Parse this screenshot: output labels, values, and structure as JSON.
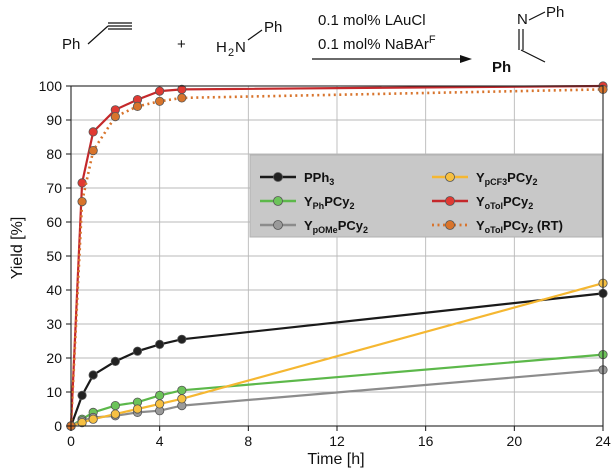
{
  "scheme": {
    "reactant1": "Ph",
    "plus": "+",
    "reactant2_h": "H",
    "reactant2_sub": "2",
    "reactant2_n": "N",
    "reactant2_ph": "Ph",
    "condition1": "0.1 mol% LAuCl",
    "condition2_pre": "0.1 mol% NaBAr",
    "condition2_sup": "F",
    "product_n": "N",
    "product_nph": "Ph",
    "product_ph": "Ph"
  },
  "chart_data": {
    "type": "line",
    "xlabel": "Time [h]",
    "ylabel": "Yield [%]",
    "xlim": [
      0,
      24
    ],
    "ylim": [
      0,
      100
    ],
    "xticks": [
      0,
      4,
      8,
      12,
      16,
      20,
      24
    ],
    "yticks": [
      0,
      10,
      20,
      30,
      40,
      50,
      60,
      70,
      80,
      90,
      100
    ],
    "grid": true,
    "legend_position": "center-right",
    "series": [
      {
        "name": "PPh3",
        "legend_main": "PPh",
        "legend_sub": "3",
        "legend_tail": "",
        "color": "#1a1a1a",
        "marker_fill": "#222222",
        "dashed": false,
        "x": [
          0,
          0.5,
          1,
          2,
          3,
          4,
          5,
          24
        ],
        "y": [
          0,
          9,
          15,
          19,
          22,
          24,
          25.5,
          39
        ]
      },
      {
        "name": "YPhPCy2",
        "legend_main": "Y",
        "legend_sub": "Ph",
        "legend_tail": "PCy",
        "legend_tail_sub": "2",
        "color": "#5cb84a",
        "marker_fill": "#6cc35a",
        "dashed": false,
        "x": [
          0,
          0.5,
          1,
          2,
          3,
          4,
          5,
          24
        ],
        "y": [
          0,
          2,
          4,
          6,
          7,
          9,
          10.5,
          21
        ]
      },
      {
        "name": "YpOMePCy2",
        "legend_main": "Y",
        "legend_sub": "pOMe",
        "legend_tail": "PCy",
        "legend_tail_sub": "2",
        "color": "#8c8c8c",
        "marker_fill": "#9a9a9a",
        "dashed": false,
        "x": [
          0,
          0.5,
          1,
          2,
          3,
          4,
          5,
          24
        ],
        "y": [
          0,
          1.5,
          2.5,
          3,
          4,
          4.5,
          6,
          16.5
        ]
      },
      {
        "name": "YpCF3PCy2",
        "legend_main": "Y",
        "legend_sub": "pCF3",
        "legend_tail": "PCy",
        "legend_tail_sub": "2",
        "color": "#f5b731",
        "marker_fill": "#f6c042",
        "dashed": false,
        "x": [
          0,
          0.5,
          1,
          2,
          3,
          4,
          5,
          24
        ],
        "y": [
          0,
          1,
          2,
          3.5,
          5,
          6.5,
          8,
          42
        ]
      },
      {
        "name": "YoTolPCy2",
        "legend_main": "Y",
        "legend_sub": "oTol",
        "legend_tail": "PCy",
        "legend_tail_sub": "2",
        "color": "#c4282b",
        "marker_fill": "#e13a33",
        "dashed": false,
        "x": [
          0,
          0.5,
          1,
          2,
          3,
          4,
          5,
          24
        ],
        "y": [
          0,
          71.5,
          86.5,
          93,
          96,
          98.5,
          99,
          100
        ]
      },
      {
        "name": "YoTolPCy2 (RT)",
        "legend_main": "Y",
        "legend_sub": "oTol",
        "legend_tail": "PCy",
        "legend_tail_sub": "2",
        "legend_extra": " (RT)",
        "color": "#d8742c",
        "marker_fill": "#d8742c",
        "dashed": true,
        "x": [
          0,
          0.5,
          1,
          2,
          3,
          4,
          5,
          24
        ],
        "y": [
          0,
          66,
          81,
          91,
          94,
          95.5,
          96.5,
          99
        ]
      }
    ]
  }
}
